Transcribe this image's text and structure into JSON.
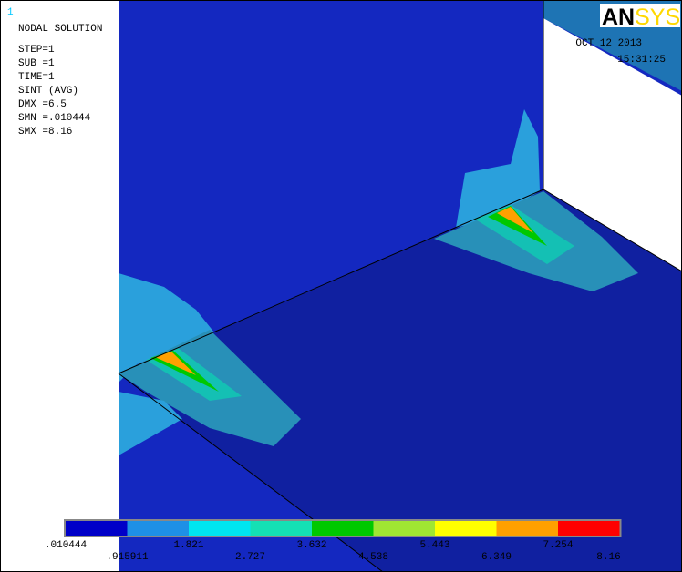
{
  "window_number": "1",
  "info": [
    "NODAL SOLUTION",
    "STEP=1",
    "SUB =1",
    "TIME=1",
    "SINT     (AVG)",
    "DMX =6.5",
    "SMN =.010444",
    "SMX =8.16"
  ],
  "logo": {
    "part1": "AN",
    "part2": "SYS"
  },
  "date": "OCT 12 2013",
  "time": "15:31:25",
  "legend": {
    "colors": [
      "#0000c8",
      "#1e90e6",
      "#00e6f0",
      "#14e0b4",
      "#00c800",
      "#a0e632",
      "#ffff00",
      "#ffa000",
      "#ff0000"
    ],
    "labels": [
      ".010444",
      ".915911",
      "1.821",
      "2.727",
      "3.632",
      "4.538",
      "5.443",
      "6.349",
      "7.254",
      "8.16"
    ]
  }
}
